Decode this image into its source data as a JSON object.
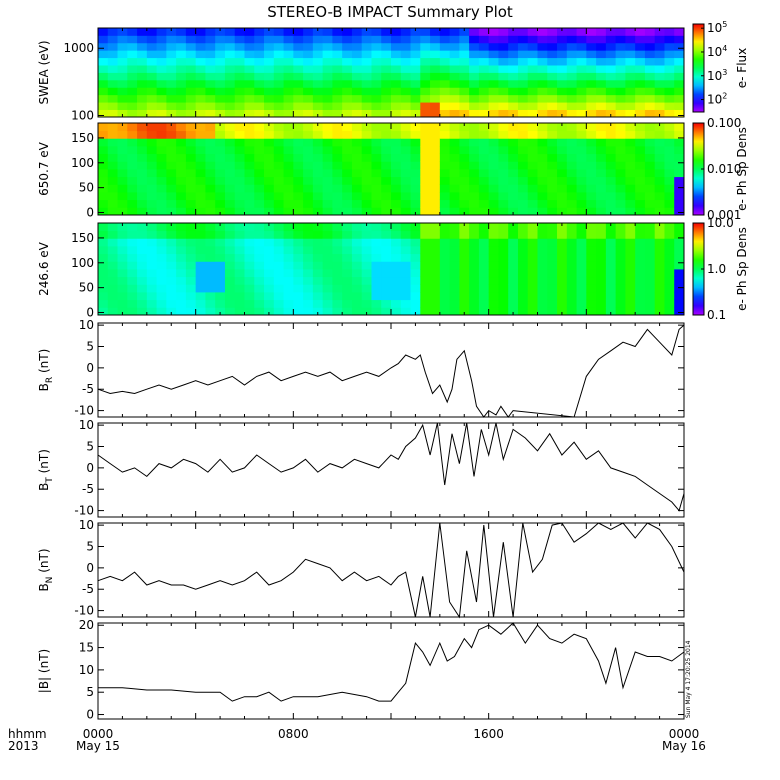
{
  "title": "STEREO-B IMPACT Summary Plot",
  "time_axis": {
    "row1_label": "hhmm",
    "row2_label": "2013",
    "ticks": [
      {
        "hour": 0,
        "label": "0000",
        "date": "May 15"
      },
      {
        "hour": 8,
        "label": "0800",
        "date": ""
      },
      {
        "hour": 16,
        "label": "1600",
        "date": ""
      },
      {
        "hour": 24,
        "label": "0000",
        "date": "May 16"
      }
    ],
    "range_hours": [
      0,
      24
    ]
  },
  "stamp": "Sun May 4 17:20:25 2014",
  "chart_data": [
    {
      "type": "heatmap",
      "ylabel": "SWEA (eV)",
      "yscale": "log",
      "ylim": [
        95,
        2000
      ],
      "yticks": [
        {
          "v": 1000,
          "label": "1000"
        },
        {
          "v": 100,
          "label": "100"
        }
      ],
      "colorbar": {
        "label": "e- Flux",
        "scale": "log",
        "range": [
          30,
          150000
        ],
        "colormap": "rainbow",
        "ticks": [
          {
            "v": 100000,
            "base": "10",
            "exp": "5"
          },
          {
            "v": 10000,
            "base": "10",
            "exp": "4"
          },
          {
            "v": 1000,
            "base": "10",
            "exp": "3"
          },
          {
            "v": 100,
            "base": "10",
            "exp": "2"
          }
        ]
      }
    },
    {
      "type": "heatmap",
      "ylabel": "650.7 eV",
      "ylim": [
        -5,
        180
      ],
      "yticks": [
        {
          "v": 150,
          "label": "150"
        },
        {
          "v": 100,
          "label": "100"
        },
        {
          "v": 50,
          "label": "50"
        },
        {
          "v": 0,
          "label": "0"
        }
      ],
      "colorbar": {
        "label": "e- Ph Sp Dens",
        "scale": "log",
        "range": [
          0.001,
          0.1
        ],
        "colormap": "rainbow",
        "ticks": [
          {
            "v": 0.1,
            "label": "0.100"
          },
          {
            "v": 0.01,
            "label": "0.010"
          },
          {
            "v": 0.001,
            "label": "0.001"
          }
        ]
      }
    },
    {
      "type": "heatmap",
      "ylabel": "246.6 eV",
      "ylim": [
        -5,
        180
      ],
      "yticks": [
        {
          "v": 150,
          "label": "150"
        },
        {
          "v": 100,
          "label": "100"
        },
        {
          "v": 50,
          "label": "50"
        },
        {
          "v": 0,
          "label": "0"
        }
      ],
      "colorbar": {
        "label": "e- Ph Sp Dens",
        "scale": "log",
        "range": [
          0.1,
          10
        ],
        "colormap": "rainbow",
        "ticks": [
          {
            "v": 10,
            "label": "10.0"
          },
          {
            "v": 1,
            "label": "1.0"
          },
          {
            "v": 0.1,
            "label": "0.1"
          }
        ]
      }
    },
    {
      "type": "line",
      "ylabel": "B",
      "ylabel_sub": "R",
      "ylabel_unit": "(nT)",
      "ylim": [
        -11.5,
        10.5
      ],
      "yticks": [
        {
          "v": 10,
          "label": "10"
        },
        {
          "v": 5,
          "label": "5"
        },
        {
          "v": 0,
          "label": "0"
        },
        {
          "v": -5,
          "label": "-5"
        },
        {
          "v": -10,
          "label": "-10"
        }
      ],
      "x": [
        0,
        0.5,
        1,
        1.5,
        2,
        2.5,
        3,
        3.5,
        4,
        4.5,
        5,
        5.5,
        6,
        6.5,
        7,
        7.5,
        8,
        8.5,
        9,
        9.5,
        10,
        10.5,
        11,
        11.5,
        12,
        12.3,
        12.6,
        13,
        13.2,
        13.4,
        13.7,
        14,
        14.3,
        14.5,
        14.7,
        15,
        15.3,
        15.5,
        15.8,
        16,
        16.3,
        16.5,
        16.8,
        17,
        19.5,
        20,
        20.5,
        21,
        21.5,
        22,
        22.5,
        23,
        23.5,
        23.8,
        24
      ],
      "y": [
        -5,
        -6,
        -5.5,
        -6,
        -5,
        -4,
        -5,
        -4,
        -3,
        -4,
        -3,
        -2,
        -4,
        -2,
        -1,
        -3,
        -2,
        -1,
        -2,
        -1,
        -3,
        -2,
        -1,
        -2,
        0,
        1,
        3,
        2,
        3,
        -1,
        -6,
        -4,
        -8,
        -5,
        2,
        4,
        -3,
        -9,
        -12,
        -10,
        -11,
        -9,
        -12,
        -10,
        -12,
        -2,
        2,
        4,
        6,
        5,
        9,
        6,
        3,
        9,
        10
      ]
    },
    {
      "type": "line",
      "ylabel": "B",
      "ylabel_sub": "T",
      "ylabel_unit": "(nT)",
      "ylim": [
        -11.5,
        10.5
      ],
      "yticks": [
        {
          "v": 10,
          "label": "10"
        },
        {
          "v": 5,
          "label": "5"
        },
        {
          "v": 0,
          "label": "0"
        },
        {
          "v": -5,
          "label": "-5"
        },
        {
          "v": -10,
          "label": "-10"
        }
      ],
      "x": [
        0,
        0.5,
        1,
        1.5,
        2,
        2.5,
        3,
        3.5,
        4,
        4.5,
        5,
        5.5,
        6,
        6.5,
        7,
        7.5,
        8,
        8.5,
        9,
        9.5,
        10,
        10.5,
        11,
        11.5,
        12,
        12.3,
        12.6,
        13,
        13.3,
        13.6,
        13.9,
        14.2,
        14.5,
        14.8,
        15.1,
        15.4,
        15.7,
        16,
        16.3,
        16.6,
        17,
        17.5,
        18,
        18.5,
        19,
        19.5,
        20,
        20.5,
        21,
        21.5,
        22,
        22.5,
        23,
        23.5,
        23.8,
        24
      ],
      "y": [
        3,
        1,
        -1,
        0,
        -2,
        1,
        0,
        2,
        1,
        -1,
        2,
        -1,
        0,
        3,
        1,
        -1,
        0,
        2,
        -1,
        1,
        0,
        2,
        1,
        0,
        3,
        2,
        5,
        7,
        10,
        3,
        11,
        -4,
        8,
        1,
        12,
        -2,
        9,
        3,
        11,
        2,
        9,
        7,
        4,
        8,
        3,
        6,
        2,
        4,
        0,
        -1,
        -2,
        -4,
        -6,
        -8,
        -10,
        -6
      ]
    },
    {
      "type": "line",
      "ylabel": "B",
      "ylabel_sub": "N",
      "ylabel_unit": "(nT)",
      "ylim": [
        -11.5,
        10.5
      ],
      "yticks": [
        {
          "v": 10,
          "label": "10"
        },
        {
          "v": 5,
          "label": "5"
        },
        {
          "v": 0,
          "label": "0"
        },
        {
          "v": -5,
          "label": "-5"
        },
        {
          "v": -10,
          "label": "-10"
        }
      ],
      "x": [
        0,
        0.5,
        1,
        1.5,
        2,
        2.5,
        3,
        3.5,
        4,
        4.5,
        5,
        5.5,
        6,
        6.5,
        7,
        7.5,
        8,
        8.5,
        9,
        9.5,
        10,
        10.5,
        11,
        11.5,
        12,
        12.3,
        12.6,
        13,
        13.3,
        13.6,
        14,
        14.4,
        14.8,
        15.1,
        15.5,
        15.8,
        16.2,
        16.6,
        17,
        17.4,
        17.8,
        18.2,
        18.6,
        19,
        19.5,
        20,
        20.5,
        21,
        21.5,
        22,
        22.5,
        23,
        23.5,
        24
      ],
      "y": [
        -3,
        -2,
        -3,
        -1,
        -4,
        -3,
        -4,
        -4,
        -5,
        -4,
        -3,
        -4,
        -3,
        -1,
        -4,
        -3,
        -1,
        2,
        1,
        0,
        -3,
        -1,
        -3,
        -2,
        -4,
        -2,
        -1,
        -12,
        -2,
        -12,
        11,
        -8,
        -12,
        4,
        -8,
        10,
        -12,
        6,
        -12,
        11,
        -1,
        2,
        10,
        11,
        6,
        8,
        11,
        9,
        12,
        7,
        11,
        9,
        5,
        -1
      ]
    },
    {
      "type": "line",
      "ylabel": "|B|",
      "ylabel_unit": "(nT)",
      "ylim": [
        -1,
        20.5
      ],
      "yticks": [
        {
          "v": 20,
          "label": "20"
        },
        {
          "v": 15,
          "label": "15"
        },
        {
          "v": 10,
          "label": "10"
        },
        {
          "v": 5,
          "label": "5"
        },
        {
          "v": 0,
          "label": "0"
        }
      ],
      "x": [
        0,
        1,
        2,
        3,
        4,
        5,
        5.5,
        6,
        6.5,
        7,
        7.5,
        8,
        9,
        10,
        11,
        11.5,
        12,
        12.3,
        12.6,
        13,
        13.3,
        13.6,
        14,
        14.3,
        14.6,
        15,
        15.3,
        15.6,
        16,
        16.5,
        17,
        17.5,
        18,
        18.5,
        19,
        19.5,
        20,
        20.5,
        20.8,
        21.2,
        21.5,
        22,
        22.5,
        23,
        23.5,
        24
      ],
      "y": [
        6,
        6,
        5.5,
        5.5,
        5,
        5,
        3,
        4,
        4,
        5,
        3,
        4,
        4,
        5,
        4,
        3,
        3,
        5,
        7,
        16,
        14,
        11,
        16,
        12,
        13,
        17,
        15,
        19,
        20,
        18,
        21,
        16,
        20,
        17,
        16,
        18,
        17,
        12,
        7,
        15,
        6,
        14,
        13,
        13,
        12,
        14
      ]
    }
  ]
}
